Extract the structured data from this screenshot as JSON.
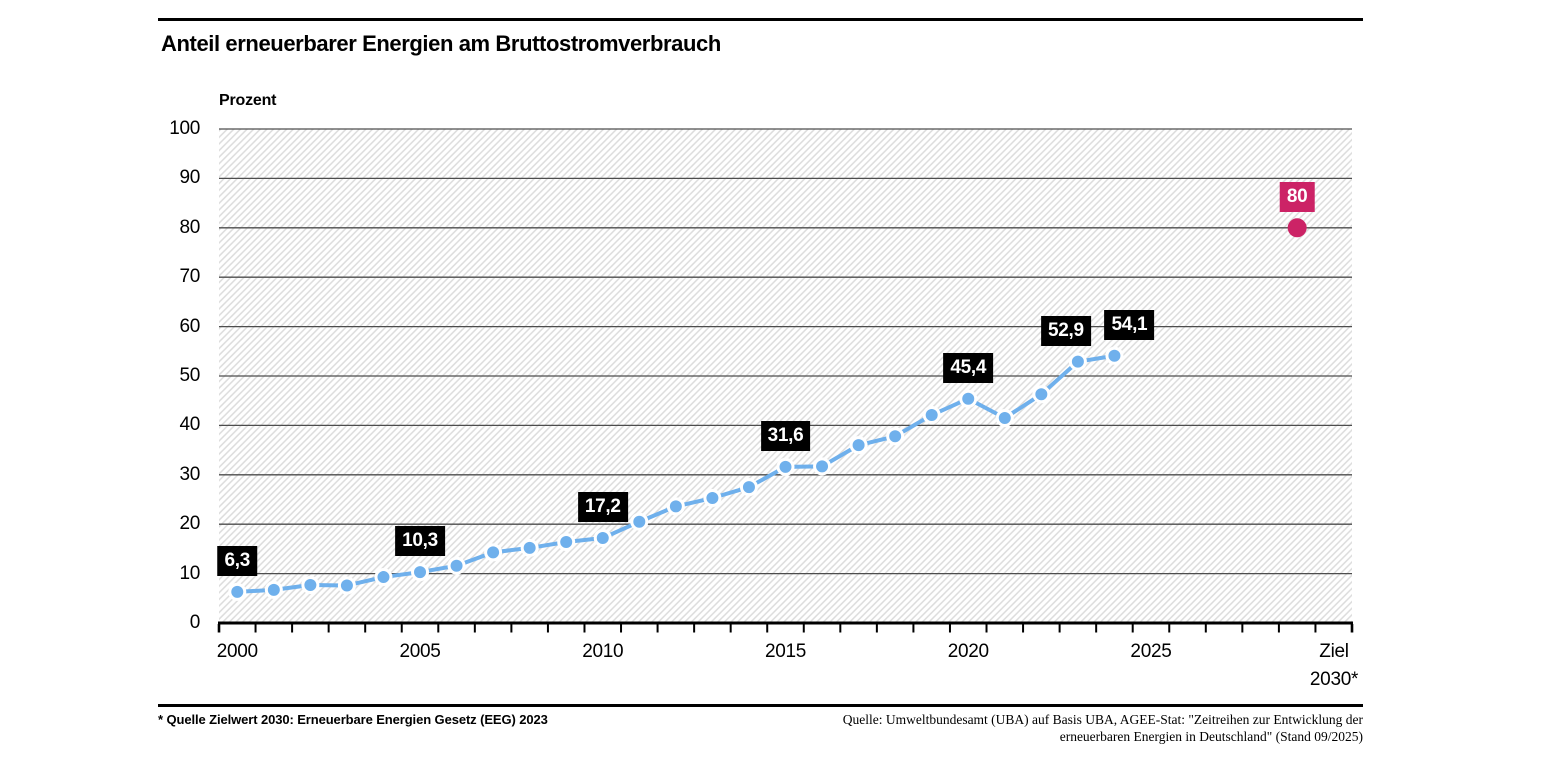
{
  "header": {
    "title": "Anteil erneuerbarer Energien am Bruttostromverbrauch"
  },
  "chart_data": {
    "type": "line",
    "title": "Anteil erneuerbarer Energien am Bruttostromverbrauch",
    "xlabel": "",
    "ylabel": "Prozent",
    "ylim": [
      0,
      100
    ],
    "y_ticks": [
      0,
      10,
      20,
      30,
      40,
      50,
      60,
      70,
      80,
      90,
      100
    ],
    "grid": true,
    "background": "diagonal-hatch",
    "categories": [
      2000,
      2001,
      2002,
      2003,
      2004,
      2005,
      2006,
      2007,
      2008,
      2009,
      2010,
      2011,
      2012,
      2013,
      2014,
      2015,
      2016,
      2017,
      2018,
      2019,
      2020,
      2021,
      2022,
      2023,
      2024
    ],
    "series": [
      {
        "name": "Anteil erneuerbarer Energien",
        "values": [
          6.3,
          6.7,
          7.7,
          7.6,
          9.3,
          10.3,
          11.6,
          14.3,
          15.2,
          16.4,
          17.2,
          20.5,
          23.6,
          25.3,
          27.5,
          31.6,
          31.7,
          36.0,
          37.8,
          42.1,
          45.4,
          41.5,
          46.3,
          52.9,
          54.1
        ]
      }
    ],
    "x_tick_labels": [
      {
        "label": "2000",
        "index": 0
      },
      {
        "label": "2005",
        "index": 5
      },
      {
        "label": "2010",
        "index": 10
      },
      {
        "label": "2015",
        "index": 15
      },
      {
        "label": "2020",
        "index": 20
      },
      {
        "label": "2025",
        "index": 25
      }
    ],
    "annotations": [
      {
        "label": "6,3",
        "index": 0,
        "dx": 0
      },
      {
        "label": "10,3",
        "index": 5,
        "dx": 0
      },
      {
        "label": "17,2",
        "index": 10,
        "dx": 0
      },
      {
        "label": "31,6",
        "index": 15,
        "dx": 0
      },
      {
        "label": "45,4",
        "index": 20,
        "dx": 0
      },
      {
        "label": "52,9",
        "index": 23,
        "dx": -12
      },
      {
        "label": "54,1",
        "index": 24,
        "dx": 15
      }
    ],
    "target": {
      "value": 80,
      "label": "80",
      "axis_label_line1": "Ziel",
      "axis_label_line2": "2030*"
    },
    "colors": {
      "line": "#6fb0ec",
      "marker": "#6fb0ec",
      "marker_ring": "#ffffff",
      "target": "#cc2366",
      "label_bg": "#000000",
      "label_text": "#ffffff",
      "grid": "#4d4d4d",
      "axis": "#000000",
      "hatch": "#dcdcdc"
    }
  },
  "footer": {
    "footnote": "* Quelle Zielwert 2030: Erneuerbare Energien Gesetz (EEG) 2023",
    "source_line1": "Quelle: Umweltbundesamt (UBA) auf Basis UBA, AGEE-Stat: \"Zeitreihen zur Entwicklung der",
    "source_line2": "erneuerbaren Energien in Deutschland\" (Stand 09/2025)"
  }
}
